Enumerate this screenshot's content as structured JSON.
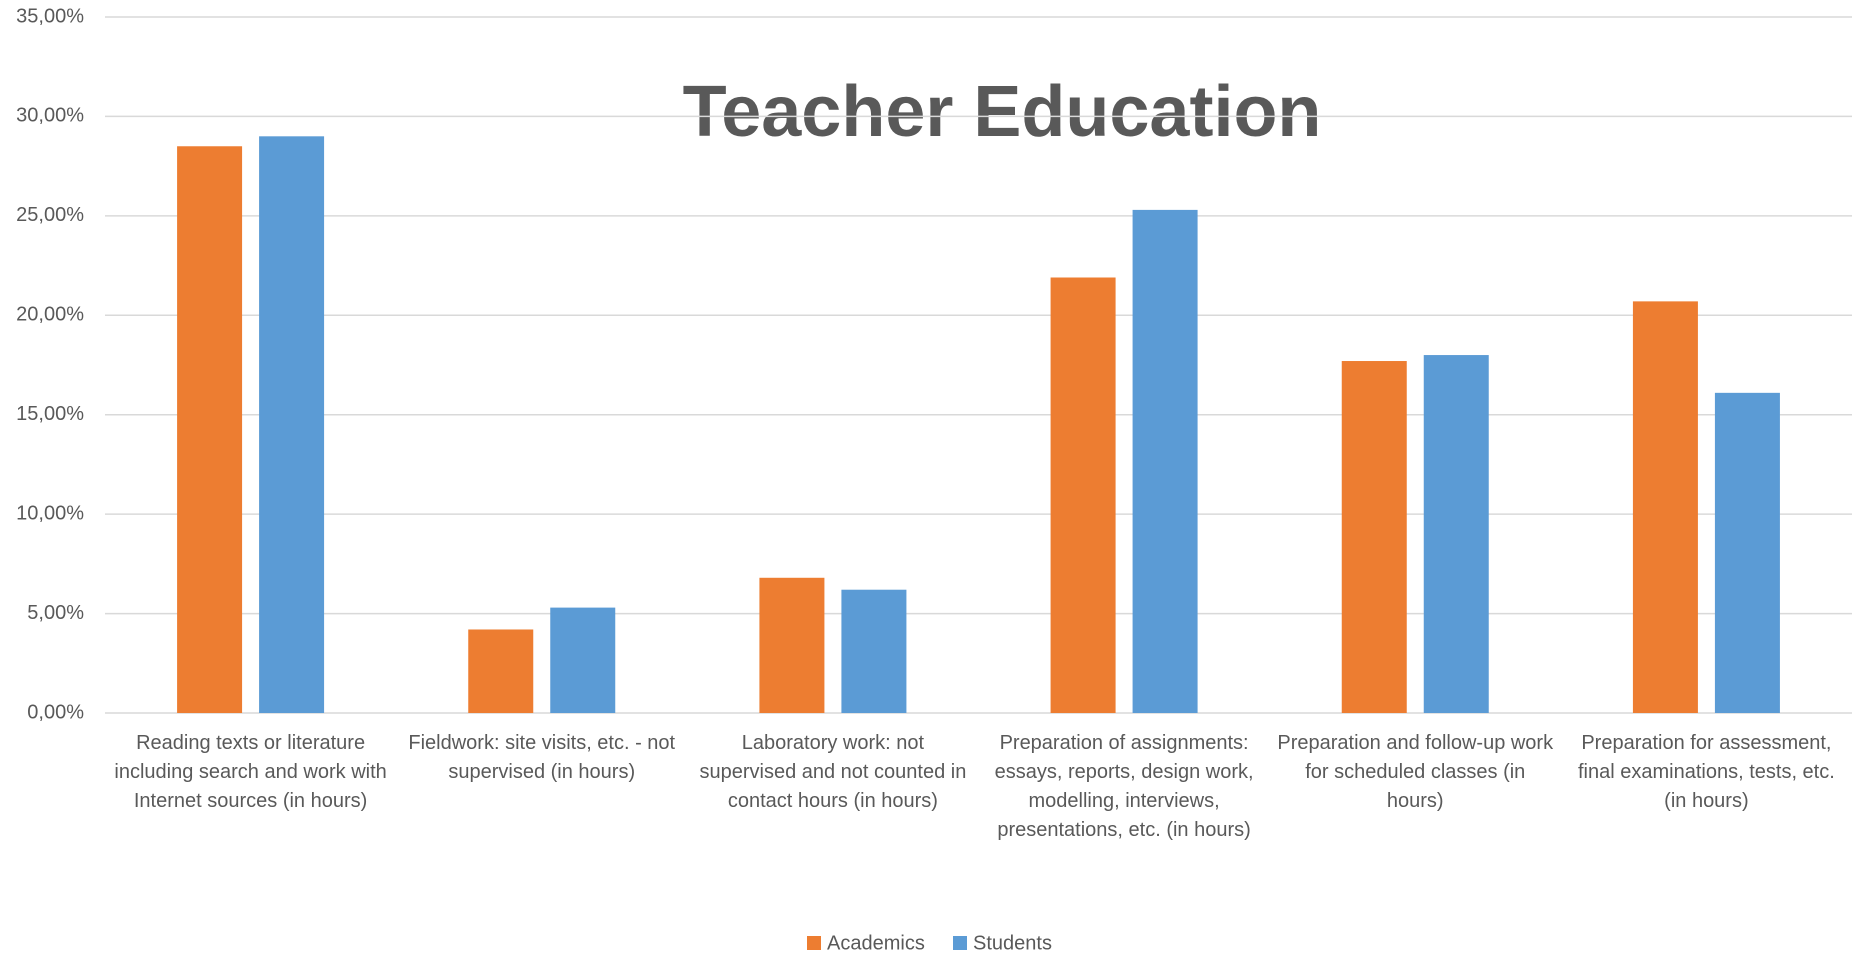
{
  "chart_data": {
    "type": "bar",
    "title": "Teacher Education",
    "categories": [
      "Reading texts or literature including search and work with Internet sources (in hours)",
      "Fieldwork: site visits, etc. - not supervised (in hours)",
      "Laboratory work: not supervised and not counted in contact hours (in hours)",
      "Preparation of assignments: essays, reports, design work, modelling, interviews, presentations, etc. (in hours)",
      "Preparation and follow-up work for scheduled classes (in hours)",
      "Preparation for assessment, final examinations, tests, etc. (in hours)"
    ],
    "series": [
      {
        "name": "Academics",
        "color": "#ed7d31",
        "values": [
          28.5,
          4.2,
          6.8,
          21.9,
          17.7,
          20.7
        ]
      },
      {
        "name": "Students",
        "color": "#5b9bd5",
        "values": [
          29.0,
          5.3,
          6.2,
          25.3,
          18.0,
          16.1
        ]
      }
    ],
    "ylim": [
      0,
      35
    ],
    "yticks": [
      {
        "value": 0,
        "label": "0,00%"
      },
      {
        "value": 5,
        "label": "5,00%"
      },
      {
        "value": 10,
        "label": "10,00%"
      },
      {
        "value": 15,
        "label": "15,00%"
      },
      {
        "value": 20,
        "label": "20,00%"
      },
      {
        "value": 25,
        "label": "25,00%"
      },
      {
        "value": 30,
        "label": "30,00%"
      },
      {
        "value": 35,
        "label": "35,00%"
      }
    ],
    "grid": true,
    "legend": "bottom"
  }
}
